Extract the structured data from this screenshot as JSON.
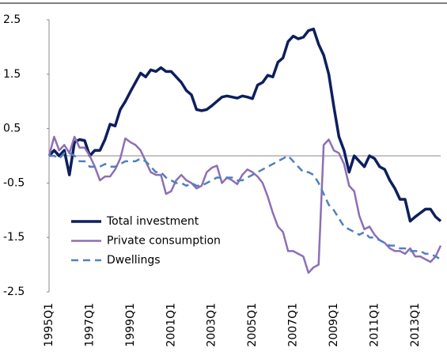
{
  "chart_data": {
    "type": "line",
    "categories": [
      "1995Q1",
      null,
      null,
      null,
      null,
      null,
      null,
      null,
      "1997Q1",
      null,
      null,
      null,
      null,
      null,
      null,
      null,
      "1999Q1",
      null,
      null,
      null,
      null,
      null,
      null,
      null,
      "2001Q1",
      null,
      null,
      null,
      null,
      null,
      null,
      null,
      "2003Q1",
      null,
      null,
      null,
      null,
      null,
      null,
      null,
      "2005Q1",
      null,
      null,
      null,
      null,
      null,
      null,
      null,
      "2007Q1",
      null,
      null,
      null,
      null,
      null,
      null,
      null,
      "2009Q1",
      null,
      null,
      null,
      null,
      null,
      null,
      null,
      "2011Q1",
      null,
      null,
      null,
      null,
      null,
      null,
      null,
      "2013Q1",
      null,
      null,
      null,
      null,
      null
    ],
    "series": [
      {
        "name": "Total investment",
        "color": "#0d1f5c",
        "style": "solid",
        "values": [
          0,
          0.1,
          0,
          0.1,
          -0.35,
          0.25,
          0.3,
          0.28,
          0,
          0.1,
          0.1,
          0.3,
          0.58,
          0.55,
          0.85,
          1,
          1.18,
          1.35,
          1.52,
          1.45,
          1.58,
          1.55,
          1.62,
          1.55,
          1.55,
          1.45,
          1.35,
          1.2,
          1.12,
          0.85,
          0.83,
          0.85,
          0.92,
          1,
          1.08,
          1.1,
          1.08,
          1.06,
          1.1,
          1.08,
          1.05,
          1.3,
          1.35,
          1.48,
          1.45,
          1.72,
          1.8,
          2.1,
          2.2,
          2.15,
          2.18,
          2.3,
          2.33,
          2.05,
          1.85,
          1.5,
          0.9,
          0.35,
          0.1,
          -0.3,
          0,
          -0.1,
          -0.2,
          0,
          -0.05,
          -0.2,
          -0.25,
          -0.45,
          -0.6,
          -0.8,
          -0.8,
          -1.2,
          -1.12,
          -1.05,
          -0.98,
          -0.98,
          -1.12,
          -1.2
        ]
      },
      {
        "name": "Private consumption",
        "color": "#8e6fb5",
        "style": "solid",
        "values": [
          0,
          0.35,
          0.1,
          0.2,
          0.05,
          0.35,
          0.15,
          0.15,
          0,
          -0.2,
          -0.45,
          -0.38,
          -0.38,
          -0.25,
          -0.05,
          0.32,
          0.25,
          0.2,
          0.1,
          -0.1,
          -0.3,
          -0.35,
          -0.35,
          -0.7,
          -0.65,
          -0.45,
          -0.35,
          -0.45,
          -0.5,
          -0.6,
          -0.55,
          -0.3,
          -0.22,
          -0.18,
          -0.5,
          -0.4,
          -0.45,
          -0.52,
          -0.35,
          -0.25,
          -0.3,
          -0.38,
          -0.5,
          -0.75,
          -1.05,
          -1.3,
          -1.4,
          -1.75,
          -1.75,
          -1.8,
          -1.85,
          -2.15,
          -2.05,
          -2,
          0.2,
          0.3,
          0.1,
          0.05,
          -0.15,
          -0.55,
          -0.65,
          -1.1,
          -1.35,
          -1.3,
          -1.45,
          -1.55,
          -1.6,
          -1.7,
          -1.75,
          -1.75,
          -1.8,
          -1.7,
          -1.85,
          -1.85,
          -1.9,
          -1.95,
          -1.85,
          -1.65
        ]
      },
      {
        "name": "Dwellings",
        "color": "#4f81bd",
        "style": "dashed",
        "values": [
          0,
          0,
          -0.05,
          0.05,
          0.05,
          0,
          -0.1,
          -0.1,
          -0.2,
          -0.2,
          -0.2,
          -0.15,
          -0.2,
          -0.2,
          -0.15,
          -0.1,
          -0.1,
          -0.1,
          -0.05,
          -0.1,
          -0.2,
          -0.3,
          -0.3,
          -0.4,
          -0.45,
          -0.5,
          -0.5,
          -0.55,
          -0.5,
          -0.55,
          -0.55,
          -0.5,
          -0.45,
          -0.4,
          -0.4,
          -0.4,
          -0.4,
          -0.45,
          -0.45,
          -0.4,
          -0.35,
          -0.3,
          -0.25,
          -0.2,
          -0.15,
          -0.1,
          -0.05,
          0,
          -0.1,
          -0.2,
          -0.3,
          -0.3,
          -0.35,
          -0.5,
          -0.7,
          -0.9,
          -1,
          -1.15,
          -1.3,
          -1.35,
          -1.4,
          -1.45,
          -1.4,
          -1.5,
          -1.5,
          -1.55,
          -1.6,
          -1.65,
          -1.65,
          -1.7,
          -1.7,
          -1.75,
          -1.75,
          -1.75,
          -1.8,
          -1.8,
          -1.85,
          -1.9
        ]
      }
    ],
    "ylim": [
      -2.5,
      2.5
    ],
    "yticks": [
      2.5,
      1.5,
      0.5,
      -0.5,
      -1.5,
      -2.5
    ],
    "grid": false,
    "legend": "lower-left"
  }
}
